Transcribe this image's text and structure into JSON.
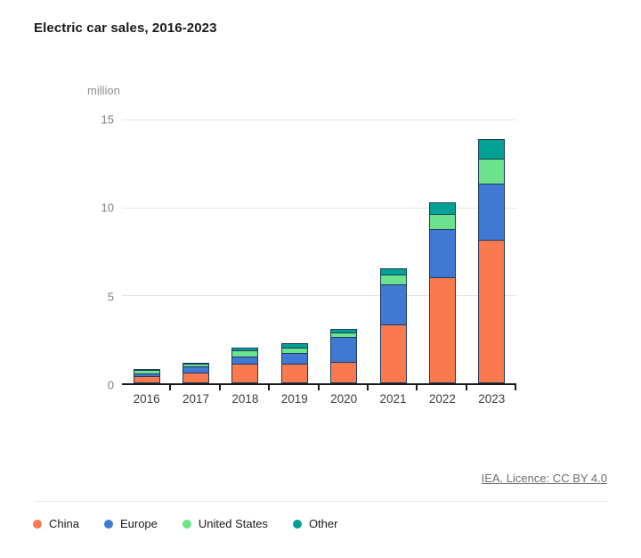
{
  "title": "Electric car sales, 2016-2023",
  "footer": {
    "license_text": "IEA. Licence: CC BY 4.0"
  },
  "colors": {
    "axis": "#1a1a1a",
    "grid": "#e6e6e6",
    "bar_border": "#1e3c5c"
  },
  "chart_data": {
    "type": "bar",
    "stacked": true,
    "title": "Electric car sales, 2016-2023",
    "unit_label": "million",
    "categories": [
      "2016",
      "2017",
      "2018",
      "2019",
      "2020",
      "2021",
      "2022",
      "2023"
    ],
    "series": [
      {
        "name": "China",
        "color": "#FB7A4D",
        "values": [
          0.34,
          0.58,
          1.06,
          1.06,
          1.16,
          3.3,
          6.0,
          8.1
        ]
      },
      {
        "name": "Europe",
        "color": "#4178D4",
        "values": [
          0.19,
          0.31,
          0.39,
          0.6,
          1.4,
          2.28,
          2.7,
          3.2
        ]
      },
      {
        "name": "United States",
        "color": "#6BE28B",
        "values": [
          0.16,
          0.2,
          0.36,
          0.33,
          0.3,
          0.56,
          0.9,
          1.4
        ]
      },
      {
        "name": "Other",
        "color": "#00A295",
        "values": [
          0.05,
          0.1,
          0.21,
          0.28,
          0.22,
          0.4,
          0.7,
          1.2
        ]
      }
    ],
    "ylim": [
      0,
      15
    ],
    "yticks": [
      0,
      5,
      10,
      15
    ],
    "ytick_labels": [
      "0",
      "5",
      "10",
      "15"
    ],
    "grid": "horizontal",
    "legend_position": "bottom"
  }
}
